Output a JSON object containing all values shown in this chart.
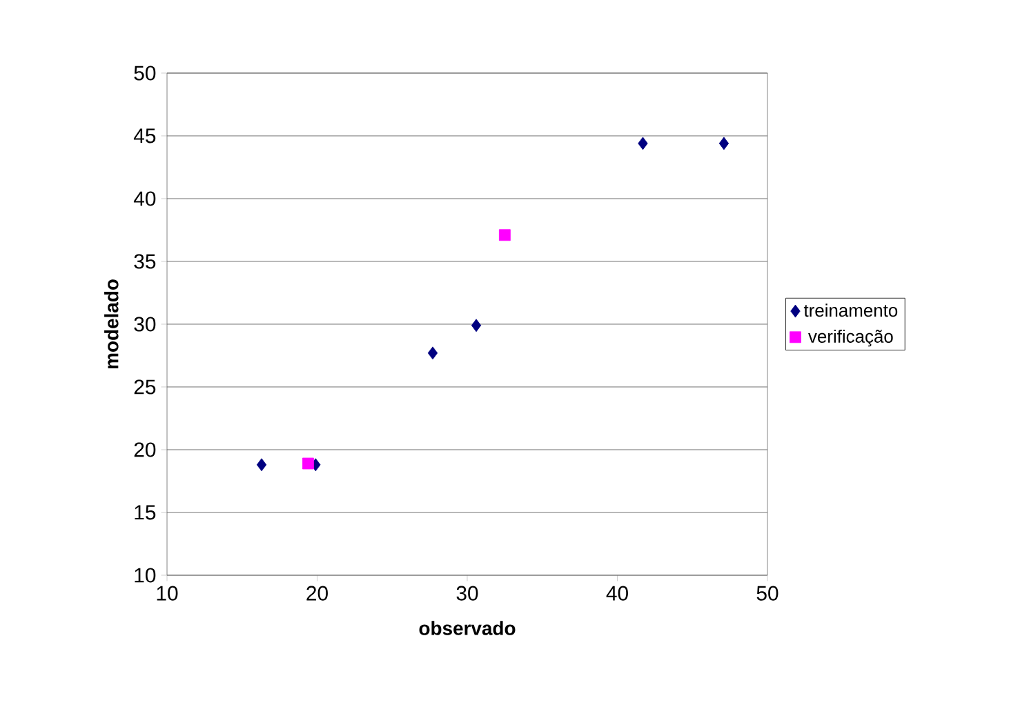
{
  "chart_data": {
    "type": "scatter",
    "xlabel": "observado",
    "ylabel": "modelado",
    "series": [
      {
        "name": "treinamento",
        "color": "#000080",
        "marker": "diamond",
        "x": [
          16.3,
          19.9,
          27.7,
          30.6,
          41.7,
          47.1
        ],
        "values": [
          18.8,
          18.8,
          27.7,
          29.9,
          44.4,
          44.4
        ]
      },
      {
        "name": "verificação",
        "color": "#ff00ff",
        "marker": "square",
        "x": [
          19.4,
          32.5
        ],
        "values": [
          18.9,
          37.1
        ]
      }
    ],
    "xlim": [
      10,
      50
    ],
    "ylim": [
      10,
      50
    ],
    "xticks": [
      10,
      20,
      30,
      40,
      50
    ],
    "yticks": [
      10,
      15,
      20,
      25,
      30,
      35,
      40,
      45,
      50
    ],
    "grid": "y",
    "legend": "right"
  }
}
